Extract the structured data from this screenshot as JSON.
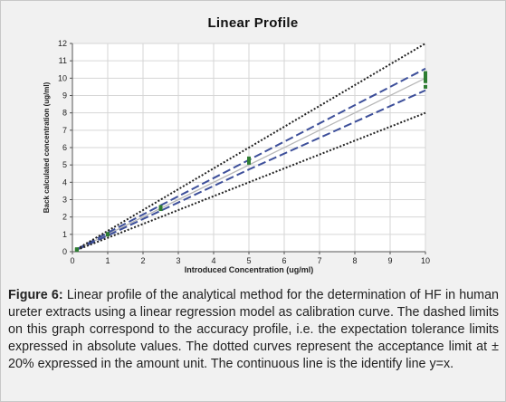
{
  "chart_data": {
    "type": "line",
    "title": "Linear Profile",
    "xlabel": "Introduced Concentration (ug/ml)",
    "ylabel": "Back calculated concentration (ug/ml)",
    "xlim": [
      0,
      10
    ],
    "ylim": [
      0,
      12
    ],
    "xticks": [
      0,
      1,
      2,
      3,
      4,
      5,
      6,
      7,
      8,
      9,
      10
    ],
    "yticks": [
      0,
      1,
      2,
      3,
      4,
      5,
      6,
      7,
      8,
      9,
      10,
      11,
      12
    ],
    "grid": true,
    "legend": "none",
    "colors": {
      "plot_bg": "#ffffff",
      "grid": "#d6d6d6",
      "identity": "#b8b8b8",
      "tolerance": "#3d4f9a",
      "acceptance": "#222222",
      "points": "#2e7d32"
    },
    "series": [
      {
        "style": "solid",
        "x": [
          0.125,
          10
        ],
        "y": [
          0.125,
          10
        ]
      },
      {
        "style": "dashed-upper",
        "x": [
          0.125,
          1,
          2.5,
          5,
          10
        ],
        "y": [
          0.14,
          1.09,
          2.67,
          5.29,
          10.55
        ]
      },
      {
        "style": "dashed-lower",
        "x": [
          0.125,
          1,
          2.5,
          5,
          10
        ],
        "y": [
          0.11,
          0.93,
          2.36,
          4.74,
          9.3
        ]
      },
      {
        "style": "dotted-upper",
        "x": [
          0.125,
          10
        ],
        "y": [
          0.15,
          12
        ]
      },
      {
        "style": "dotted-lower",
        "x": [
          0.125,
          10
        ],
        "y": [
          0.1,
          8
        ]
      }
    ],
    "points": {
      "x": [
        0.125,
        0.125,
        0.125,
        1,
        1,
        1,
        2.5,
        2.5,
        2.5,
        5,
        5,
        5,
        10,
        10,
        10,
        10,
        10
      ],
      "y": [
        0.1,
        0.13,
        0.15,
        0.98,
        1.0,
        1.03,
        2.45,
        2.52,
        2.58,
        5.12,
        5.25,
        5.38,
        9.5,
        9.82,
        10.0,
        10.15,
        10.3
      ]
    }
  },
  "caption": {
    "label": "Figure 6:",
    "text": "Linear profile of the analytical method for the determination of HF in human ureter extracts using a linear regression model as calibration curve. The dashed limits on this graph correspond to the accuracy profile, i.e. the expectation tolerance limits expressed in absolute values. The dotted curves represent the acceptance limit at ± 20% expressed in the amount unit. The continuous line is the identify line y=x."
  }
}
